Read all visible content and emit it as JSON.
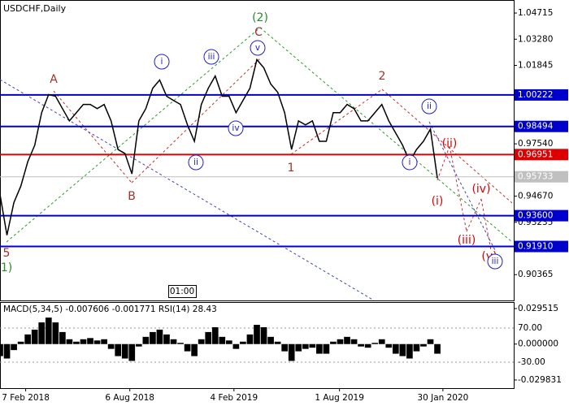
{
  "chart_data": {
    "type": "line",
    "title": "USDCHF,Daily",
    "time_label": "01:00",
    "xlim": [
      0,
      74
    ],
    "xticks": [
      {
        "value": 3.7,
        "label": "7 Feb 2018"
      },
      {
        "value": 18.7,
        "label": "6 Aug 2018"
      },
      {
        "value": 33.7,
        "label": "4 Feb 2019"
      },
      {
        "value": 48.9,
        "label": "1 Aug 2019"
      },
      {
        "value": 63.8,
        "label": "30 Jan 2020"
      }
    ],
    "ylim": [
      0.8895,
      1.0543
    ],
    "yticks": [
      1.04715,
      {
        "value": 1.0328,
        "label": "1.03280"
      },
      1.01845,
      {
        "value": 0.9754,
        "label": "0.97540"
      },
      {
        "value": 0.9467,
        "label": "0.94670"
      },
      0.93235,
      0.90365
    ],
    "series": [
      {
        "name": "USDCHF",
        "color": "#000000",
        "values": [
          0.9477,
          0.9253,
          0.9432,
          0.9522,
          0.9656,
          0.9746,
          0.9925,
          1.0024,
          1.0015,
          0.9947,
          0.988,
          0.9925,
          0.997,
          0.997,
          0.9947,
          0.997,
          0.988,
          0.9723,
          0.9701,
          0.9589,
          0.988,
          0.9947,
          1.0059,
          1.0104,
          1.0015,
          0.9992,
          0.997,
          0.9858,
          0.9768,
          0.997,
          1.0059,
          1.0126,
          1.0015,
          1.0015,
          0.9925,
          0.9992,
          1.0059,
          1.0216,
          1.0171,
          1.0082,
          1.0037,
          0.9925,
          0.9723,
          0.988,
          0.9858,
          0.988,
          0.9768,
          0.9768,
          0.9925,
          0.9925,
          0.997,
          0.9947,
          0.988,
          0.988,
          0.9925,
          0.997,
          0.988,
          0.9813,
          0.9746,
          0.9656,
          0.9723,
          0.9768,
          0.9835,
          0.9566
        ]
      }
    ],
    "levels": [
      {
        "value": 1.00222,
        "color": "#0000cc"
      },
      {
        "value": 0.98494,
        "color": "#0000cc"
      },
      {
        "value": 0.96951,
        "color": "#dd0000"
      },
      {
        "value": 0.95733,
        "color": "#c0c0c0"
      },
      {
        "value": 0.936,
        "label": "0.93600",
        "color": "#0000cc"
      },
      {
        "value": 0.9191,
        "label": "0.91910",
        "color": "#0000cc"
      }
    ],
    "annotations": [
      {
        "text": "A",
        "color": "#a0322a"
      },
      {
        "text": "B",
        "color": "#a0322a"
      },
      {
        "text": "C",
        "color": "#a0322a"
      },
      {
        "text": "(2)",
        "color": "#2a8a2a"
      },
      {
        "text": "1",
        "color": "#a0322a"
      },
      {
        "text": "2",
        "color": "#a0322a"
      },
      {
        "text": "5",
        "color": "#a0322a"
      },
      {
        "text": "1)",
        "color": "#2a8a2a"
      },
      {
        "text": "i",
        "color": "#2020c0",
        "circled": true
      },
      {
        "text": "ii",
        "color": "#2020c0",
        "circled": true
      },
      {
        "text": "iii",
        "color": "#2020c0",
        "circled": true
      },
      {
        "text": "iv",
        "color": "#2020c0",
        "circled": true
      },
      {
        "text": "v",
        "color": "#2020c0",
        "circled": true
      },
      {
        "text": "i",
        "color": "#2020c0",
        "circled": true
      },
      {
        "text": "ii",
        "color": "#2020c0",
        "circled": true
      },
      {
        "text": "(i)",
        "color": "#dd0000"
      },
      {
        "text": "(ii)",
        "color": "#dd0000"
      },
      {
        "text": "(iii)",
        "color": "#dd0000"
      },
      {
        "text": "(iv)",
        "color": "#dd0000"
      },
      {
        "text": "(v)",
        "color": "#dd0000"
      },
      {
        "text": "iii",
        "color": "#2020c0",
        "circled": true
      }
    ],
    "indicator": {
      "type": "bar",
      "title": "MACD(5,34,5) -0.007606 -0.001771 RSI(14) 28.43",
      "color": "#000000",
      "ylim": [
        -0.0366,
        0.0349
      ],
      "yticks": [
        0.029515,
        {
          "value": 0,
          "label": "0.000000"
        },
        -0.029831
      ],
      "y2lim": [
        -106.2,
        146.2
      ],
      "y2ticks": [
        {
          "value": 70,
          "label": "70.00"
        },
        {
          "value": -30,
          "label": "-30.00"
        }
      ],
      "values": [
        -0.01,
        -0.012,
        -0.005,
        0.002,
        0.008,
        0.012,
        0.018,
        0.022,
        0.018,
        0.01,
        0.004,
        0.002,
        0.004,
        0.005,
        0.003,
        0.004,
        -0.004,
        -0.01,
        -0.012,
        -0.014,
        -0.002,
        0.006,
        0.01,
        0.012,
        0.008,
        0.004,
        0.001,
        -0.006,
        -0.01,
        0.004,
        0.01,
        0.014,
        0.006,
        0.003,
        -0.004,
        0.002,
        0.008,
        0.016,
        0.014,
        0.006,
        0.002,
        -0.006,
        -0.014,
        -0.006,
        -0.004,
        -0.003,
        -0.008,
        -0.008,
        0.002,
        0.004,
        0.006,
        0.004,
        -0.002,
        -0.003,
        0.001,
        0.004,
        -0.003,
        -0.008,
        -0.01,
        -0.012,
        -0.006,
        -0.002,
        0.004,
        -0.008
      ]
    }
  }
}
